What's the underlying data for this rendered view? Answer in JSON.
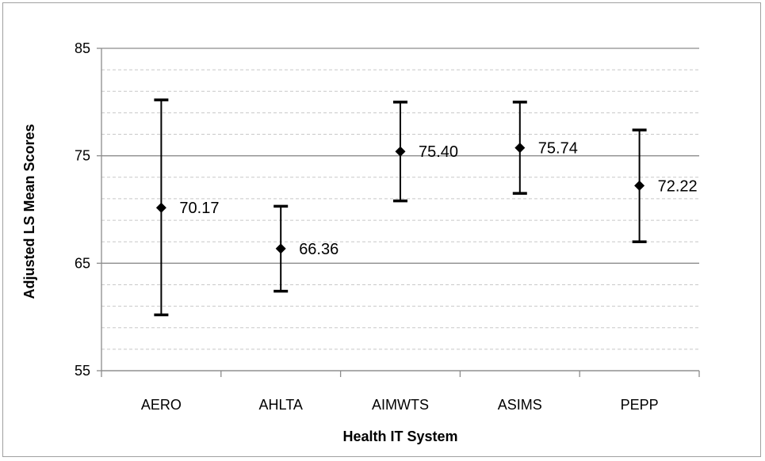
{
  "chart_data": {
    "type": "scatter",
    "title": "",
    "xlabel": "Health IT System",
    "ylabel": "Adjusted LS Mean Scores",
    "ylim": [
      55,
      85
    ],
    "yticks": [
      "55",
      "65",
      "75",
      "85"
    ],
    "minor_grid_step": 2,
    "major_grid": true,
    "categories": [
      "AERO",
      "AHLTA",
      "AIMWTS",
      "ASIMS",
      "PEPP"
    ],
    "values": [
      70.17,
      66.36,
      75.4,
      75.74,
      72.22
    ],
    "value_labels": [
      "70.17",
      "66.36",
      "75.40",
      "75.74",
      "72.22"
    ],
    "error_low": [
      60.2,
      62.4,
      70.8,
      71.5,
      67.0
    ],
    "error_high": [
      80.2,
      70.3,
      80.0,
      80.0,
      77.4
    ],
    "marker": "diamond",
    "colors": {
      "marker": "#000000",
      "error_bar": "#000000",
      "major_grid": "#8c8c8c",
      "minor_grid": "#c8c8c8",
      "axis": "#8c8c8c"
    }
  }
}
